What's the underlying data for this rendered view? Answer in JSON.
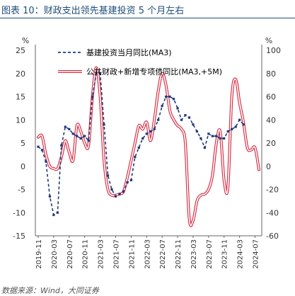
{
  "figure": {
    "title": "图表 10：财政支出领先基建投资 5 个月左右",
    "source": "数据来源：Wind，大同证券"
  },
  "chart_data": {
    "type": "line",
    "x": [
      "2019-11",
      "2019-12",
      "2020-01",
      "2020-02",
      "2020-03",
      "2020-04",
      "2020-05",
      "2020-06",
      "2020-07",
      "2020-08",
      "2020-09",
      "2020-10",
      "2020-11",
      "2020-12",
      "2021-01",
      "2021-02",
      "2021-03",
      "2021-04",
      "2021-05",
      "2021-06",
      "2021-07",
      "2021-08",
      "2021-09",
      "2021-10",
      "2021-11",
      "2021-12",
      "2022-01",
      "2022-02",
      "2022-03",
      "2022-04",
      "2022-05",
      "2022-06",
      "2022-07",
      "2022-08",
      "2022-09",
      "2022-10",
      "2022-11",
      "2022-12",
      "2023-01",
      "2023-02",
      "2023-03",
      "2023-04",
      "2023-05",
      "2023-06",
      "2023-07",
      "2023-08",
      "2023-09",
      "2023-10",
      "2023-11",
      "2023-12",
      "2024-01",
      "2024-02",
      "2024-03",
      "2024-04",
      "2024-05",
      "2024-06",
      "2024-07",
      "2024-08"
    ],
    "xticks": [
      "2019-11",
      "2020-03",
      "2020-07",
      "2020-11",
      "2021-03",
      "2021-07",
      "2021-11",
      "2022-03",
      "2022-07",
      "2022-11",
      "2023-03",
      "2023-07",
      "2023-11",
      "2024-03",
      "2024-07"
    ],
    "y_left": {
      "unit": "%",
      "ylim": [
        -15,
        25
      ],
      "ticks": [
        -15,
        -10,
        -5,
        0,
        5,
        10,
        15,
        20,
        25
      ]
    },
    "y_right": {
      "unit": "%",
      "ylim": [
        -60,
        100
      ],
      "ticks": [
        -60,
        -40,
        -20,
        0,
        20,
        40,
        60,
        80,
        100
      ]
    },
    "series": [
      {
        "name": "基建投资当月同比(MA3)",
        "axis": "left",
        "color": "#1f3a7a",
        "style": "dashed-markers",
        "values": [
          4.2,
          3.5,
          1.0,
          -6.5,
          -10.5,
          -10.0,
          4.5,
          8.5,
          8.0,
          7.0,
          6.5,
          6.0,
          6.5,
          5.5,
          15.0,
          20.0,
          20.0,
          9.0,
          -2.0,
          -5.0,
          -6.5,
          -6.0,
          -5.5,
          -3.5,
          -3.0,
          2.0,
          4.0,
          6.0,
          7.0,
          7.5,
          8.0,
          10.0,
          13.0,
          15.0,
          15.0,
          14.5,
          12.5,
          10.0,
          11.0,
          10.5,
          9.0,
          7.5,
          6.0,
          4.0,
          7.0,
          6.5,
          6.5,
          6.0,
          6.0,
          7.5,
          8.0,
          8.5,
          10.0,
          9.0,
          null,
          null,
          null,
          null
        ]
      },
      {
        "name": "公共财政+新增专项债同比(MA3,+5M)",
        "axis": "right",
        "color": "#d6344a",
        "style": "double-line",
        "values": [
          25,
          26,
          10,
          0,
          -2,
          -2,
          8,
          22,
          12,
          5,
          35,
          30,
          20,
          18,
          60,
          85,
          60,
          5,
          -20,
          -25,
          -25,
          -24,
          -22,
          -10,
          5,
          20,
          35,
          32,
          38,
          22,
          40,
          65,
          80,
          70,
          48,
          40,
          35,
          32,
          20,
          -45,
          -47,
          -30,
          -25,
          -24,
          -20,
          -8,
          20,
          30,
          -12,
          -18,
          60,
          75,
          55,
          38,
          16,
          14,
          16,
          -3
        ]
      }
    ],
    "legend": "top-right",
    "grid": false
  }
}
